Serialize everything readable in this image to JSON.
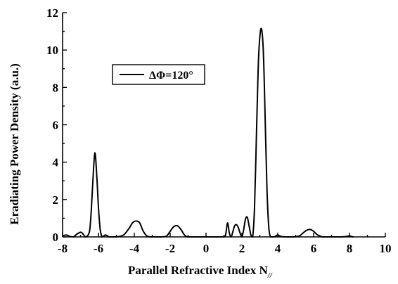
{
  "chart_data": {
    "type": "line",
    "title": "",
    "xlabel": "Parallel  Refractive Index  N",
    "xlabel_subscript": "//",
    "ylabel": "Eradiating Power Density (a.u.)",
    "xlim": [
      -8,
      10
    ],
    "ylim": [
      0,
      12
    ],
    "x_ticks": [
      "-8",
      "-6",
      "-4",
      "-2",
      "0",
      "2",
      "4",
      "6",
      "8",
      "10"
    ],
    "y_ticks": [
      "0",
      "2",
      "4",
      "6",
      "8",
      "10",
      "12"
    ],
    "grid": false,
    "legend_position": "upper-left",
    "series": [
      {
        "name": "ΔΦ=120°",
        "color": "#000000",
        "x": [
          -8.0,
          -7.8,
          -7.6,
          -7.4,
          -7.2,
          -7.0,
          -6.9,
          -6.7,
          -6.5,
          -6.4,
          -6.3,
          -6.2,
          -6.1,
          -6.0,
          -5.9,
          -5.8,
          -5.7,
          -5.6,
          -5.4,
          -5.2,
          -5.0,
          -4.6,
          -4.3,
          -4.1,
          -3.9,
          -3.7,
          -3.5,
          -3.3,
          -3.1,
          -2.8,
          -2.5,
          -2.2,
          -2.0,
          -1.8,
          -1.6,
          -1.4,
          -1.2,
          -1.0,
          -0.5,
          0.0,
          0.5,
          1.0,
          1.1,
          1.2,
          1.3,
          1.4,
          1.5,
          1.6,
          1.7,
          1.8,
          1.9,
          2.0,
          2.1,
          2.2,
          2.3,
          2.4,
          2.5,
          2.6,
          2.7,
          2.8,
          2.9,
          3.0,
          3.1,
          3.2,
          3.3,
          3.4,
          3.5,
          3.6,
          3.7,
          3.8,
          3.9,
          4.0,
          4.2,
          4.5,
          4.9,
          5.2,
          5.4,
          5.6,
          5.8,
          6.0,
          6.2,
          6.5,
          7.0,
          7.5,
          7.8,
          8.0,
          8.2
        ],
        "values": [
          0.05,
          0.1,
          0.03,
          0.0,
          0.15,
          0.25,
          0.2,
          0.0,
          0.3,
          1.4,
          3.2,
          4.5,
          3.4,
          1.6,
          0.4,
          0.0,
          0.05,
          0.1,
          0.0,
          0.0,
          0.0,
          0.1,
          0.45,
          0.75,
          0.85,
          0.75,
          0.3,
          0.05,
          0.0,
          0.0,
          0.0,
          0.05,
          0.3,
          0.55,
          0.6,
          0.4,
          0.1,
          0.0,
          0.0,
          0.0,
          0.0,
          0.0,
          0.15,
          0.75,
          0.2,
          0.0,
          0.3,
          0.6,
          0.65,
          0.5,
          0.2,
          0.0,
          0.4,
          0.95,
          1.05,
          0.6,
          0.1,
          0.0,
          1.5,
          5.0,
          8.8,
          10.7,
          11.1,
          9.8,
          6.3,
          2.5,
          0.5,
          0.0,
          0.0,
          0.0,
          0.05,
          0.1,
          0.02,
          0.0,
          0.0,
          0.05,
          0.2,
          0.35,
          0.4,
          0.3,
          0.12,
          0.0,
          0.0,
          0.0,
          0.02,
          0.05,
          0.0
        ]
      }
    ]
  }
}
